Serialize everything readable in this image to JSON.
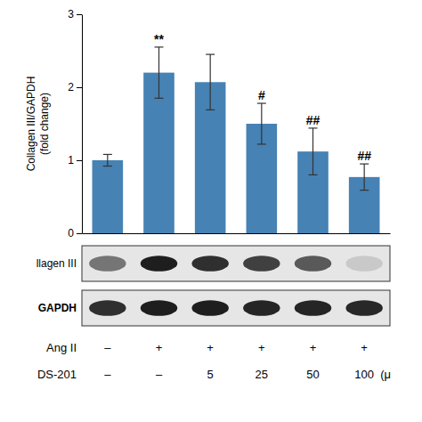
{
  "chart_data": {
    "type": "bar",
    "ylabel": "Collagen III/GAPDH\n(fold change)",
    "values": [
      1.0,
      2.2,
      2.07,
      1.5,
      1.12,
      0.77
    ],
    "errors": [
      0.08,
      0.35,
      0.38,
      0.28,
      0.32,
      0.18
    ],
    "ylim": [
      0,
      3
    ],
    "yticks": [
      0,
      1,
      2,
      3
    ],
    "annotations": [
      {
        "text": "**",
        "index": 1
      },
      {
        "text": "#",
        "index": 3
      },
      {
        "text": "##",
        "index": 4
      },
      {
        "text": "##",
        "index": 5
      }
    ],
    "blots": [
      {
        "label": "llagen III",
        "values": [
          0.62,
          0.9,
          0.85,
          0.8,
          0.72,
          0.32
        ]
      },
      {
        "label": "GAPDH",
        "values": [
          0.85,
          0.9,
          0.9,
          0.88,
          0.88,
          0.87
        ]
      }
    ],
    "rows": [
      {
        "label": "Ang II",
        "labels": [
          "–",
          "+",
          "+",
          "+",
          "+",
          "+"
        ]
      },
      {
        "label": "DS-201",
        "labels": [
          "–",
          "–",
          "5",
          "25",
          "50",
          "100"
        ],
        "unit": "(μ"
      }
    ]
  }
}
